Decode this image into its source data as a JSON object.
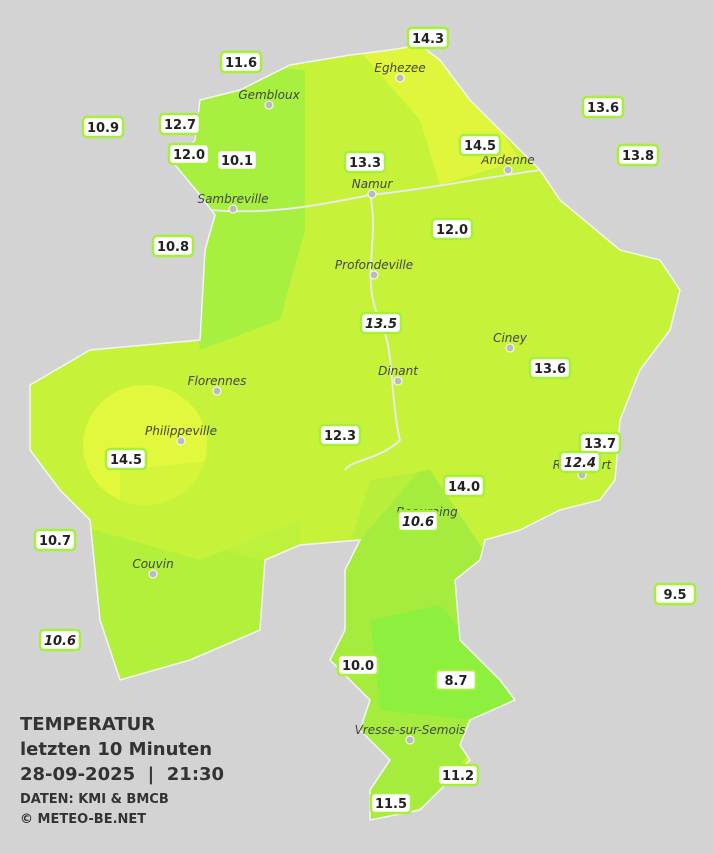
{
  "title": "TEMPERATUR",
  "subtitle": "letzten 10 Minuten",
  "datetime": "28-09-2025  |  21:30",
  "source": "DATEN: KMI & BMCB",
  "copyright": "© METEO-BE.NET",
  "cities": [
    {
      "name": "Eghezee"
    },
    {
      "name": "Gembloux"
    },
    {
      "name": "Andenne"
    },
    {
      "name": "Namur"
    },
    {
      "name": "Sambreville"
    },
    {
      "name": "Profondeville"
    },
    {
      "name": "Ciney"
    },
    {
      "name": "Dinant"
    },
    {
      "name": "Florennes"
    },
    {
      "name": "Philippeville"
    },
    {
      "name": "Beauraing"
    },
    {
      "name": "Rochefort"
    },
    {
      "name": "Couvin"
    },
    {
      "name": "Vresse-sur-Semois"
    }
  ],
  "stations": [
    {
      "label": "14.3"
    },
    {
      "label": "11.6"
    },
    {
      "label": "13.6"
    },
    {
      "label": "10.9"
    },
    {
      "label": "12.7"
    },
    {
      "label": "12.0"
    },
    {
      "label": "10.1"
    },
    {
      "label": "13.3"
    },
    {
      "label": "14.5"
    },
    {
      "label": "13.8"
    },
    {
      "label": "12.0"
    },
    {
      "label": "10.8"
    },
    {
      "label": "13.5",
      "italic": true
    },
    {
      "label": "13.6"
    },
    {
      "label": "12.3"
    },
    {
      "label": "13.7"
    },
    {
      "label": "12.4",
      "italic": true
    },
    {
      "label": "14.5"
    },
    {
      "label": "14.0"
    },
    {
      "label": "10.6",
      "italic": true
    },
    {
      "label": "10.7"
    },
    {
      "label": "9.5"
    },
    {
      "label": "10.6",
      "italic": true
    },
    {
      "label": "10.0"
    },
    {
      "label": "8.7"
    },
    {
      "label": "11.2"
    },
    {
      "label": "11.5"
    }
  ]
}
